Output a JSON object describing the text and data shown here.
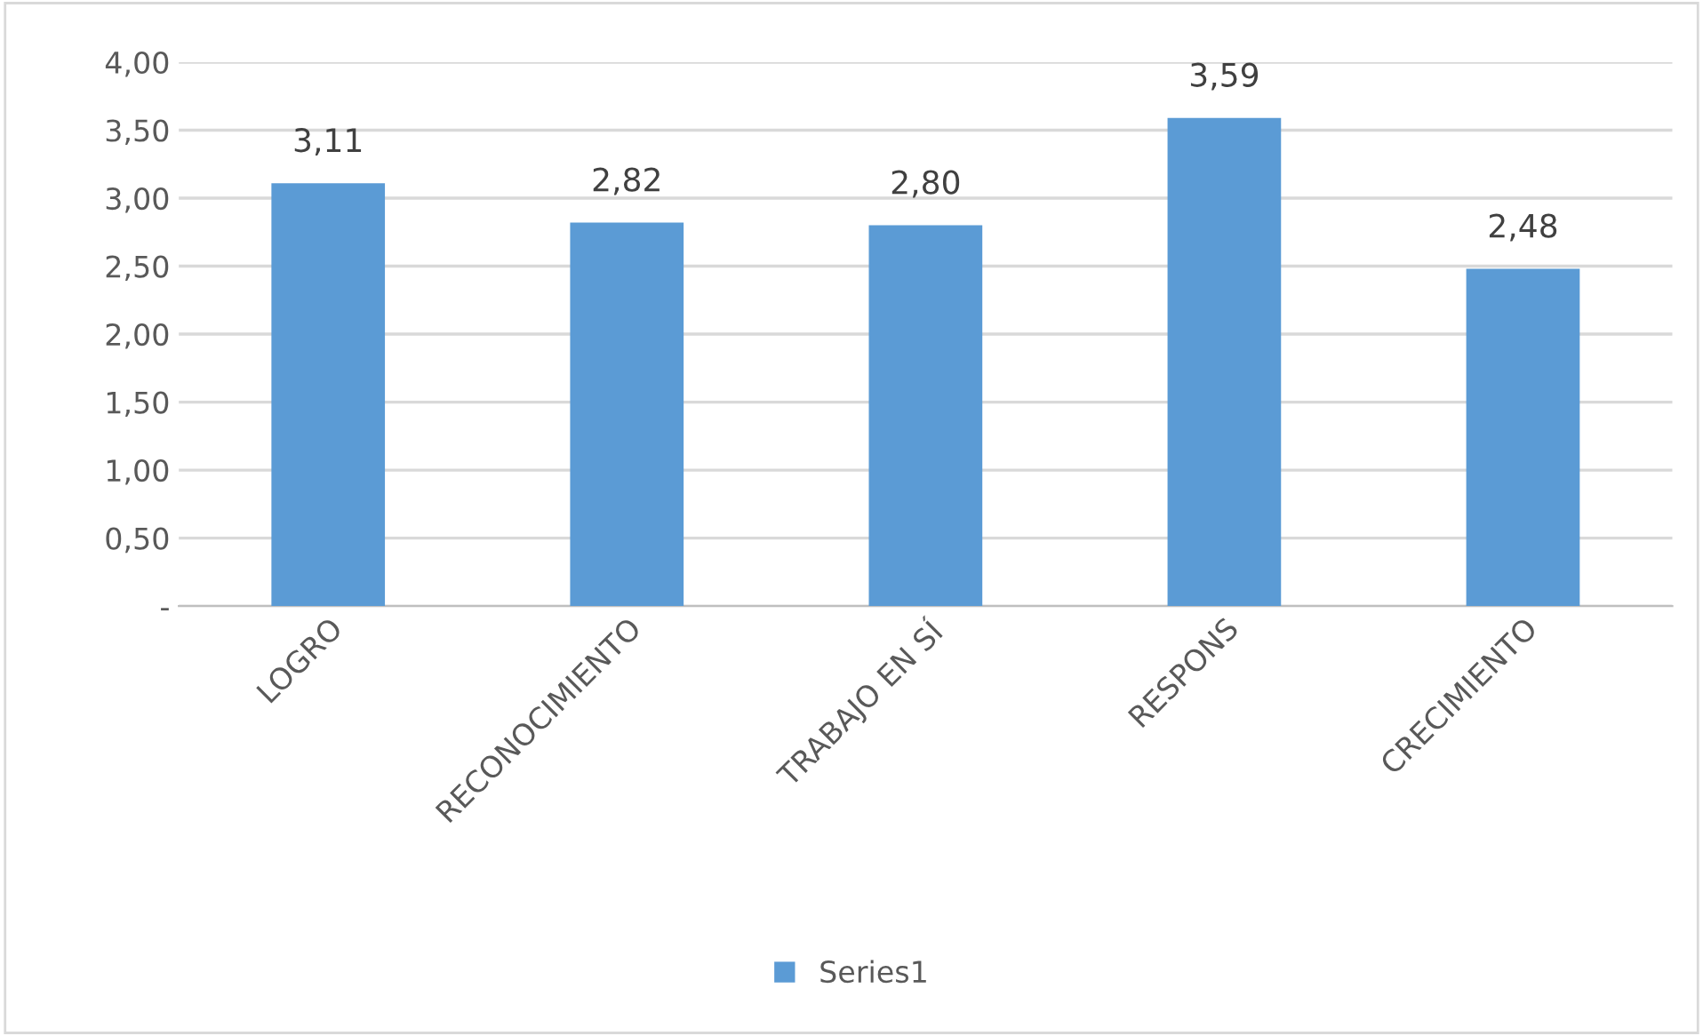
{
  "chart_data": {
    "type": "bar",
    "categories": [
      "LOGRO",
      "RECONOCIMIENTO",
      "TRABAJO EN SÍ",
      "RESPONS",
      "CRECIMIENTO"
    ],
    "series": [
      {
        "name": "Series1",
        "color": "#5b9bd5",
        "values": [
          3.11,
          2.82,
          2.8,
          3.59,
          2.48
        ],
        "value_labels": [
          "3,11",
          "2,82",
          "2,80",
          "3,59",
          "2,48"
        ]
      }
    ],
    "ylim": [
      0,
      4
    ],
    "yticks": [
      {
        "value": 0,
        "label": "-"
      },
      {
        "value": 0.5,
        "label": "0,50"
      },
      {
        "value": 1,
        "label": "1,00"
      },
      {
        "value": 1.5,
        "label": "1,50"
      },
      {
        "value": 2,
        "label": "2,00"
      },
      {
        "value": 2.5,
        "label": "2,50"
      },
      {
        "value": 3,
        "label": "3,00"
      },
      {
        "value": 3.5,
        "label": "3,50"
      },
      {
        "value": 4,
        "label": "4,00"
      }
    ],
    "grid": "y",
    "legend": "bottom"
  }
}
